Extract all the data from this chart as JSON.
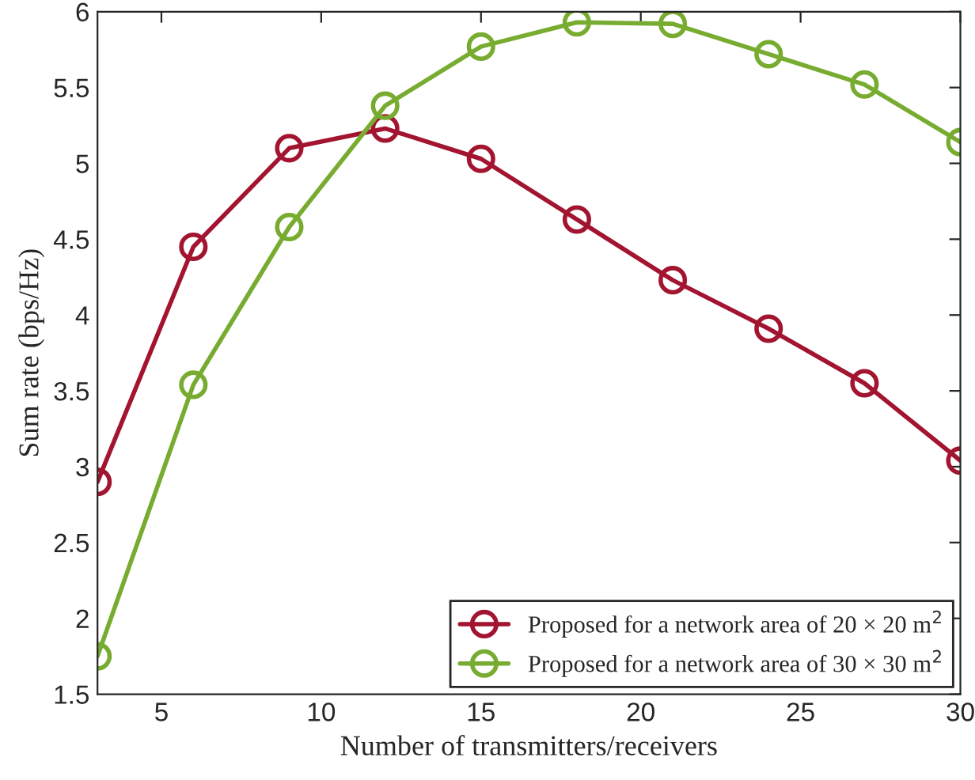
{
  "chart_data": {
    "type": "line",
    "xlabel": "Number of transmitters/receivers",
    "ylabel": "Sum rate (bps/Hz)",
    "x": [
      3,
      6,
      9,
      12,
      15,
      18,
      21,
      24,
      27,
      30
    ],
    "series": [
      {
        "name": "Proposed for a network area of 20 × 20 m$^{2}$",
        "color": "#a2142f",
        "values": [
          2.9,
          4.45,
          5.1,
          5.23,
          5.03,
          4.63,
          4.23,
          3.91,
          3.55,
          3.04
        ]
      },
      {
        "name": "Proposed for a network area of 30 × 30 m$^{2}$",
        "color": "#77ac30",
        "values": [
          1.75,
          3.54,
          4.58,
          5.38,
          5.77,
          5.93,
          5.92,
          5.72,
          5.52,
          5.14
        ]
      }
    ],
    "xlim": [
      3,
      30
    ],
    "xticks": [
      5,
      10,
      15,
      20,
      25,
      30
    ],
    "ylim": [
      1.5,
      6
    ],
    "yticks": [
      1.5,
      2,
      2.5,
      3,
      3.5,
      4,
      4.5,
      5,
      5.5,
      6
    ],
    "marker": "circle",
    "line_style": "solid",
    "legend": "bottom right",
    "grid": false
  }
}
